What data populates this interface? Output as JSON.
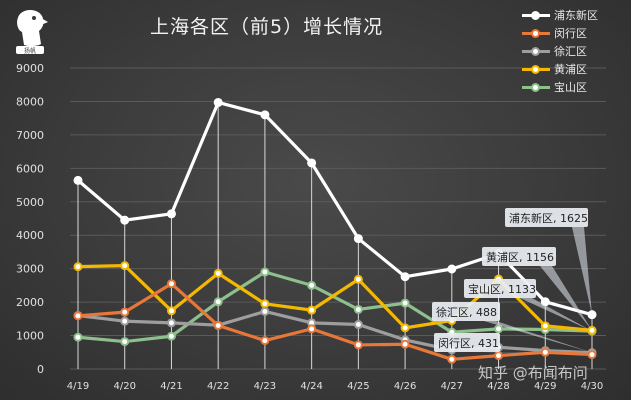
{
  "title": "上海各区（前5）增长情况",
  "logo_text": "扬帆",
  "watermark": "知乎 @布闻布问",
  "chart_data": {
    "type": "line",
    "title": "上海各区（前5）增长情况",
    "categories": [
      "4/19",
      "4/20",
      "4/21",
      "4/22",
      "4/23",
      "4/24",
      "4/25",
      "4/26",
      "4/27",
      "4/28",
      "4/29",
      "4/30"
    ],
    "ylim": [
      0,
      9000
    ],
    "yticks": [
      0,
      1000,
      2000,
      3000,
      4000,
      5000,
      6000,
      7000,
      8000,
      9000
    ],
    "grid": true,
    "legend_position": "top-right",
    "series": [
      {
        "name": "浦东新区",
        "color": "#ffffff",
        "values": [
          5640,
          4450,
          4640,
          7970,
          7600,
          6160,
          3900,
          2760,
          2990,
          3450,
          2010,
          1625
        ]
      },
      {
        "name": "闵行区",
        "color": "#e8773a",
        "values": [
          1590,
          1700,
          2550,
          1300,
          850,
          1200,
          720,
          740,
          290,
          400,
          500,
          431
        ]
      },
      {
        "name": "徐汇区",
        "color": "#9e9e9e",
        "values": [
          1600,
          1430,
          1380,
          1310,
          1720,
          1380,
          1330,
          870,
          570,
          650,
          550,
          488
        ]
      },
      {
        "name": "黄浦区",
        "color": "#f5b800",
        "values": [
          3060,
          3090,
          1740,
          2860,
          1950,
          1760,
          2680,
          1230,
          1450,
          2690,
          1290,
          1156
        ]
      },
      {
        "name": "宝山区",
        "color": "#8dc08d",
        "values": [
          950,
          820,
          980,
          2010,
          2900,
          2500,
          1780,
          1970,
          1100,
          1200,
          1180,
          1133
        ]
      }
    ],
    "annotations": [
      {
        "label": "浦东新区, 1625",
        "series": "浦东新区"
      },
      {
        "label": "黄浦区, 1156",
        "series": "黄浦区"
      },
      {
        "label": "宝山区, 1133",
        "series": "宝山区"
      },
      {
        "label": "徐汇区, 488",
        "series": "徐汇区"
      },
      {
        "label": "闵行区, 431",
        "series": "闵行区"
      }
    ]
  }
}
